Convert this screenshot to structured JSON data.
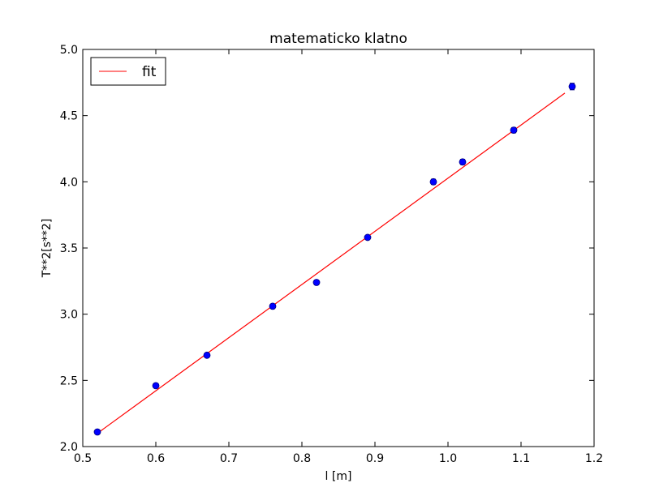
{
  "chart_data": {
    "type": "scatter",
    "title": "matematicko klatno",
    "xlabel": "l [m]",
    "ylabel": "T**2[s**2]",
    "xlim": [
      0.5,
      1.2
    ],
    "ylim": [
      2.0,
      5.0
    ],
    "xticks": [
      0.5,
      0.6,
      0.7,
      0.8,
      0.9,
      1.0,
      1.1,
      1.2
    ],
    "yticks": [
      2.0,
      2.5,
      3.0,
      3.5,
      4.0,
      4.5,
      5.0
    ],
    "xtick_labels": [
      "0.5",
      "0.6",
      "0.7",
      "0.8",
      "0.9",
      "1.0",
      "1.1",
      "1.2"
    ],
    "ytick_labels": [
      "2.0",
      "2.5",
      "3.0",
      "3.5",
      "4.0",
      "4.5",
      "5.0"
    ],
    "grid": false,
    "legend_position": "top-left",
    "series": [
      {
        "kind": "points",
        "color": "#0000ff",
        "x": [
          0.52,
          0.6,
          0.67,
          0.76,
          0.82,
          0.89,
          0.98,
          1.02,
          1.09,
          1.17
        ],
        "y": [
          2.11,
          2.46,
          2.69,
          3.06,
          3.24,
          3.58,
          4.0,
          4.15,
          4.39,
          4.72
        ],
        "yerr": [
          0.015,
          0.015,
          0.015,
          0.015,
          0.018,
          0.015,
          0.02,
          0.02,
          0.02,
          0.025
        ]
      },
      {
        "kind": "line",
        "name": "fit",
        "color": "#ff0000",
        "x": [
          0.52,
          1.16
        ],
        "y": [
          2.1,
          4.67
        ]
      }
    ]
  }
}
